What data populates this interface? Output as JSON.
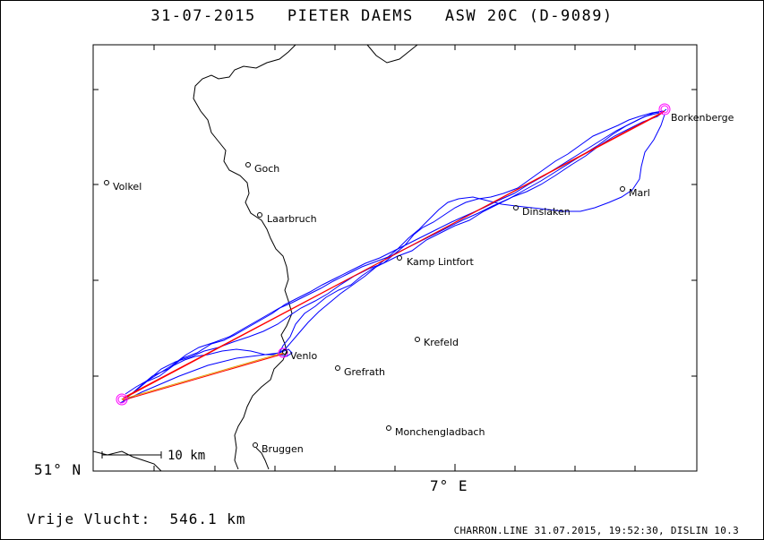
{
  "title": "31-07-2015   PIETER DAEMS   ASW 20C (D-9089)",
  "subtitle": "Vrije Vlucht:  546.1 km",
  "footer": "CHARRON.LINE 31.07.2015, 19:52:30, DISLIN 10.3",
  "axes": {
    "y_label": "51° N",
    "x_label": "7° E"
  },
  "scale_bar": {
    "label": "10 km"
  },
  "places": [
    {
      "name": "Goch"
    },
    {
      "name": "Volkel"
    },
    {
      "name": "Laarbruch"
    },
    {
      "name": "Kamp Lintfort"
    },
    {
      "name": "Krefeld"
    },
    {
      "name": "Venlo"
    },
    {
      "name": "Grefrath"
    },
    {
      "name": "Monchengladbach"
    },
    {
      "name": "Bruggen"
    },
    {
      "name": "Dinslaken"
    },
    {
      "name": "Marl"
    },
    {
      "name": "Borkenberge"
    }
  ],
  "colors": {
    "track": "#0000ff",
    "task_line": "#ff0000",
    "task_line_secondary": "#e0a000",
    "turnpoint": "#ff00ff",
    "border": "#000000"
  }
}
